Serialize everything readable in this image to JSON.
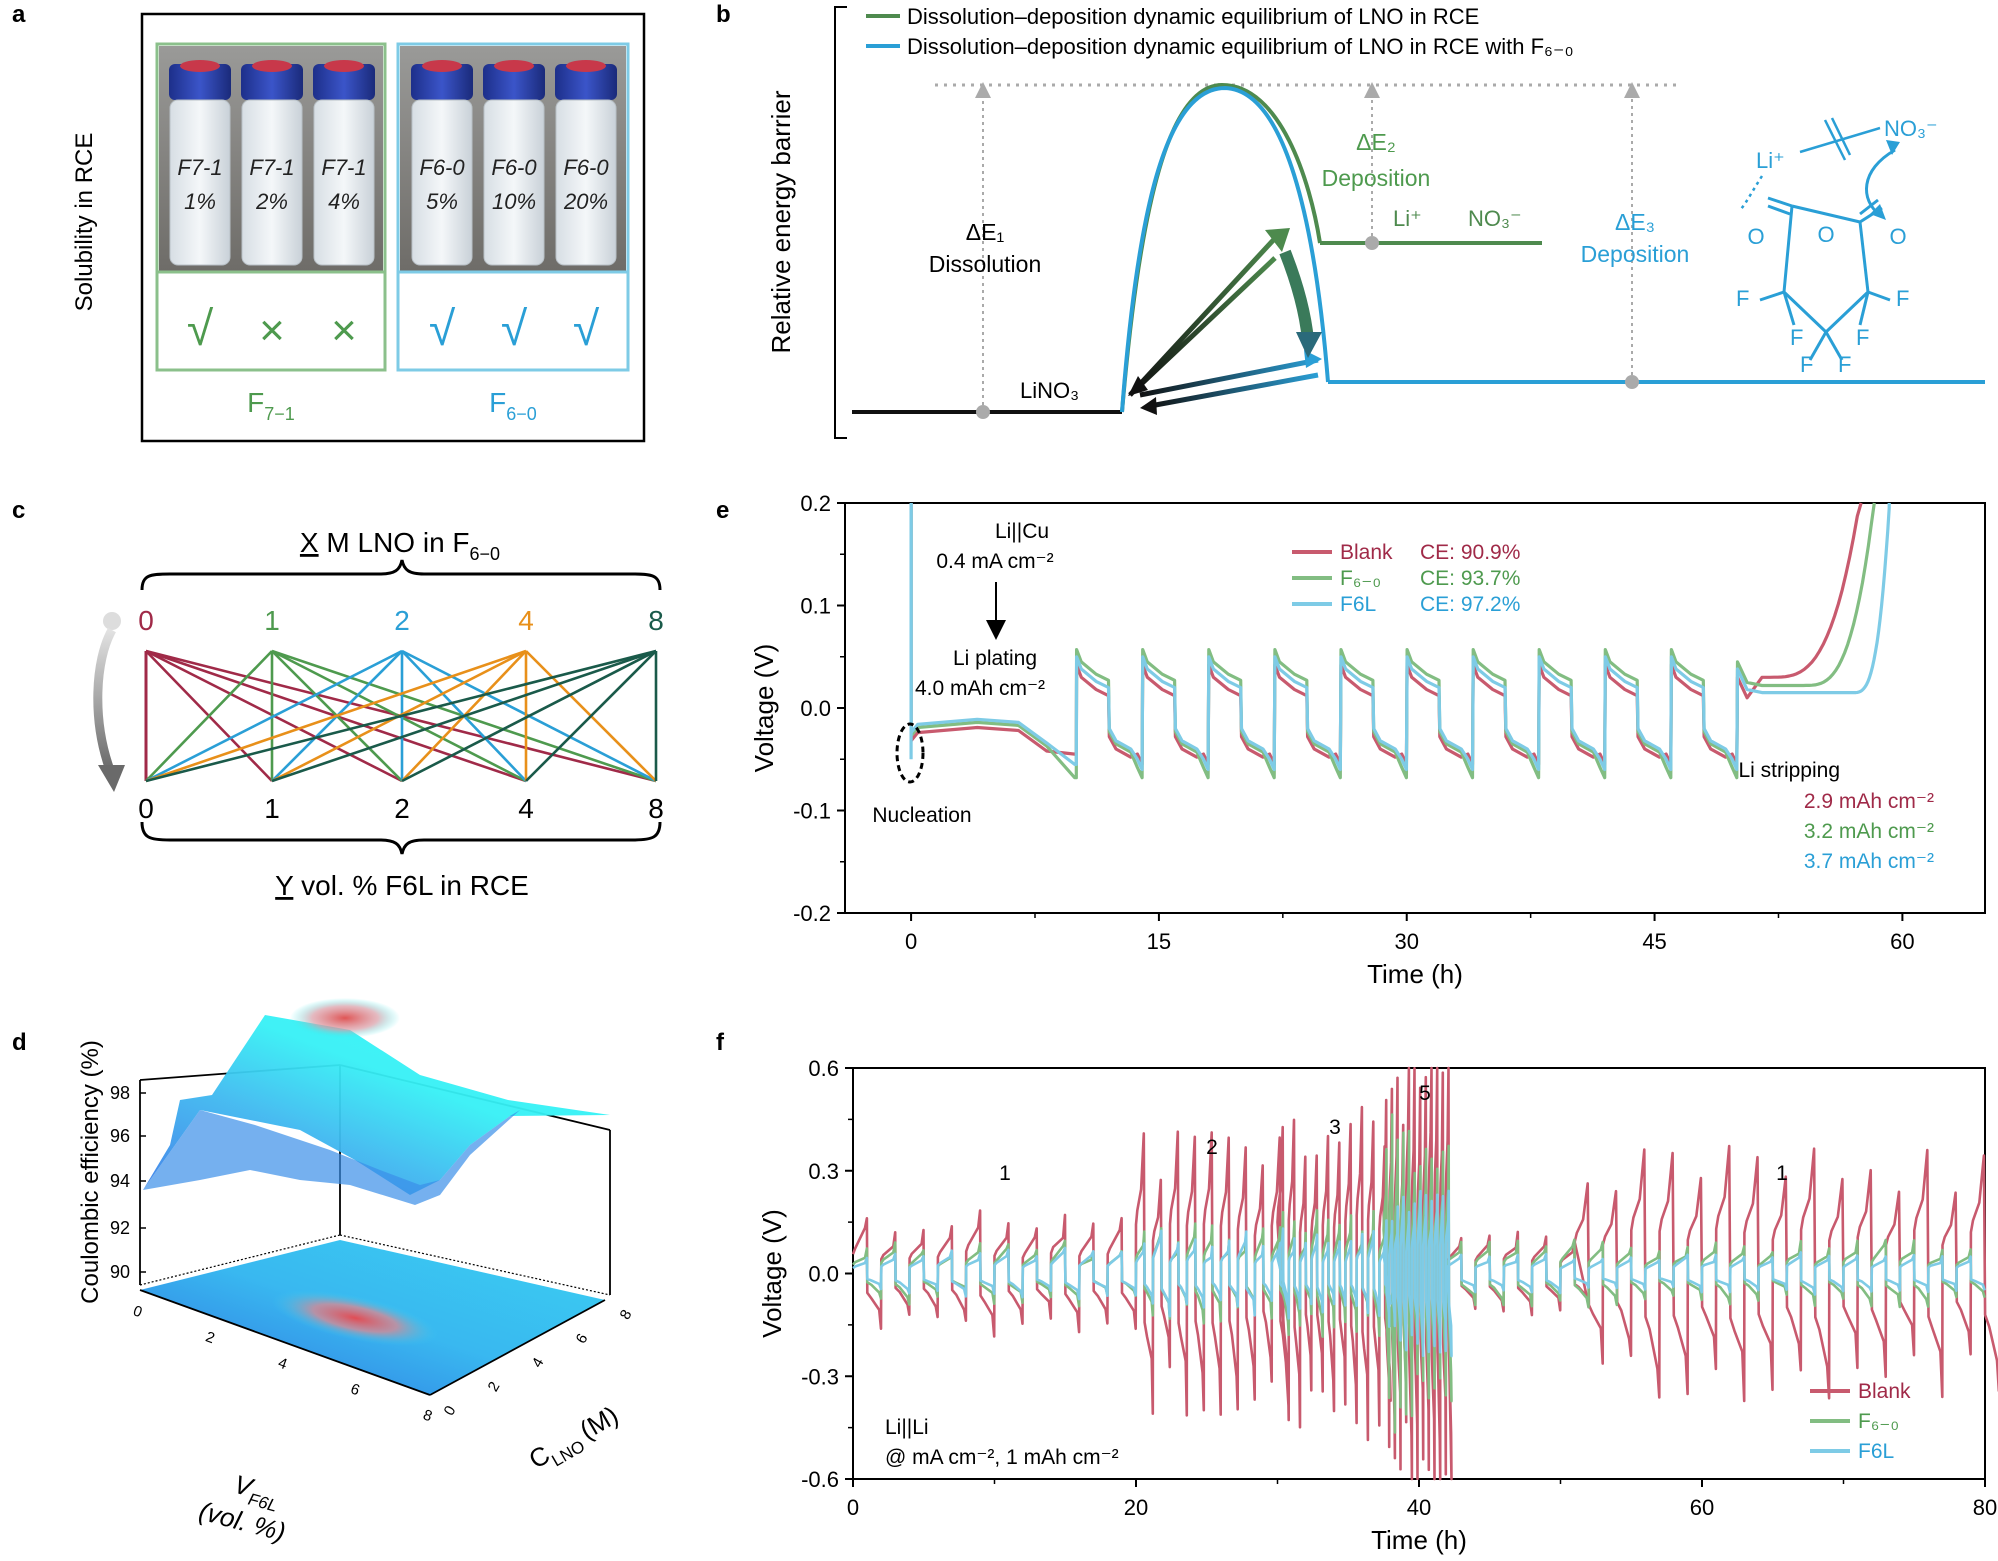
{
  "colors": {
    "blank": "#c85a6e",
    "f60": "#82bd82",
    "f6l": "#7ecbe6",
    "green_label": "#4e9a4e",
    "blue_label": "#2a9fd6",
    "dark_green": "#1a5a4a",
    "orange": "#e8901a",
    "crimson": "#a02a48"
  },
  "panel_a": {
    "letter": "a",
    "ylabel": "Solubility in RCE",
    "left_group": {
      "name": "F",
      "sub": "7−1",
      "vials": [
        "F7-1\n1%",
        "F7-1\n2%",
        "F7-1\n4%"
      ],
      "marks": [
        "√",
        "×",
        "×"
      ]
    },
    "right_group": {
      "name": "F",
      "sub": "6−0",
      "vials": [
        "F6-0\n5%",
        "F6-0\n10%",
        "F6-0\n20%"
      ],
      "marks": [
        "√",
        "√",
        "√"
      ]
    }
  },
  "panel_b": {
    "letter": "b",
    "ylabel": "Relative energy barrier",
    "legend": [
      "Dissolution–deposition dynamic equilibrium of LNO in RCE",
      "Dissolution–deposition dynamic equilibrium of LNO in RCE with F₆₋₀"
    ],
    "dE1": "ΔE₁",
    "dE1_label": "Dissolution",
    "dE2": "ΔE₂",
    "dE2_label": "Deposition",
    "dE3": "ΔE₃",
    "dE3_label": "Deposition",
    "linO3": "LiNO₃",
    "li_plus": "Li⁺",
    "no3_minus": "NO₃⁻",
    "struct_li": "Li⁺",
    "struct_no3": "NO₃⁻",
    "struct_O": "O",
    "struct_F": "F"
  },
  "panel_c": {
    "letter": "c",
    "top_label": "X M LNO in F₆₋₀",
    "top_label_x": "X",
    "top_label_rest": " M LNO in F",
    "top_label_sub": "6−0",
    "bottom_label_y": "Y",
    "bottom_label_rest": " vol. % F6L in RCE",
    "top_values": [
      "0",
      "1",
      "2",
      "4",
      "8"
    ],
    "bottom_values": [
      "0",
      "1",
      "2",
      "4",
      "8"
    ]
  },
  "panel_d": {
    "letter": "d",
    "zlabel": "Coulombic efficiency (%)",
    "z_ticks": [
      "98",
      "96",
      "94",
      "92",
      "90"
    ],
    "x_label": "V",
    "x_label_sub": "F6L",
    "x_label_unit": "(vol. %)",
    "y_label": "C",
    "y_label_sub": "LNO",
    "y_label_unit": "(M)",
    "x_ticks": [
      "0",
      "2",
      "4",
      "6",
      "8"
    ],
    "y_ticks": [
      "0",
      "2",
      "4",
      "6",
      "8"
    ]
  },
  "panel_e": {
    "letter": "e",
    "title_cell": "Li||Cu",
    "title_current": "0.4 mA cm⁻²",
    "plating": "Li plating",
    "plating_cap": "4.0 mAh cm⁻²",
    "nucleation": "Nucleation",
    "stripping": "Li stripping",
    "stripping_values": [
      "2.9 mAh cm⁻²",
      "3.2 mAh cm⁻²",
      "3.7 mAh cm⁻²"
    ],
    "legend": [
      {
        "name": "Blank",
        "ce": "CE: 90.9%"
      },
      {
        "name": "F₆₋₀",
        "ce": "CE: 93.7%"
      },
      {
        "name": "F6L",
        "ce": "CE: 97.2%"
      }
    ]
  },
  "panel_f": {
    "letter": "f",
    "cell": "Li||Li",
    "conditions": "@ mA cm⁻², 1 mAh cm⁻²",
    "stage_labels": [
      "1",
      "2",
      "3",
      "5",
      "1"
    ],
    "legend": [
      "Blank",
      "F₆₋₀",
      "F6L"
    ]
  },
  "chart_data": [
    {
      "type": "line",
      "panel": "e",
      "xlabel": "Time (h)",
      "ylabel": "Voltage (V)",
      "xlim": [
        -4,
        65
      ],
      "ylim": [
        -0.2,
        0.2
      ],
      "x_ticks": [
        0,
        15,
        30,
        45,
        60
      ],
      "y_ticks": [
        0.2,
        0.1,
        0.0,
        -0.1,
        -0.2
      ],
      "x_tick_labels": [
        "0",
        "15",
        "30",
        "45",
        "60"
      ],
      "y_tick_labels": [
        "0.2",
        "0.1",
        "0.0",
        "-0.1",
        "-0.2"
      ],
      "plating_end": 10,
      "cycle_period": 4,
      "cycles": 10,
      "series": [
        {
          "name": "Blank",
          "plateau": -0.02,
          "plating_end_v": -0.045,
          "pulse_high": 0.03,
          "pulse_low": -0.055,
          "rise_start": 52,
          "rise_end": 57.5
        },
        {
          "name": "F₆₋₀",
          "plateau": -0.015,
          "plating_end_v": -0.068,
          "pulse_high": 0.045,
          "pulse_low": -0.068,
          "rise_start": 54,
          "rise_end": 58.3
        },
        {
          "name": "F6L",
          "plateau": -0.012,
          "plating_end_v": -0.055,
          "pulse_high": 0.038,
          "pulse_low": -0.06,
          "rise_start": 57,
          "rise_end": 59.2
        }
      ]
    },
    {
      "type": "line",
      "panel": "f",
      "xlabel": "Time (h)",
      "ylabel": "Voltage (V)",
      "xlim": [
        0,
        80
      ],
      "ylim": [
        -0.6,
        0.6
      ],
      "x_ticks": [
        0,
        20,
        40,
        60,
        80
      ],
      "y_ticks": [
        0.6,
        0.3,
        0.0,
        -0.3,
        -0.6
      ],
      "x_tick_labels": [
        "0",
        "20",
        "40",
        "60",
        "80"
      ],
      "y_tick_labels": [
        "0.6",
        "0.3",
        "0.0",
        "-0.3",
        "-0.6"
      ],
      "series": [
        {
          "name": "Blank",
          "segments": [
            {
              "t0": 0,
              "t1": 20,
              "amp": 0.15,
              "period": 2
            },
            {
              "t0": 20,
              "t1": 30,
              "amp": 0.35,
              "period": 1.2
            },
            {
              "t0": 30,
              "t1": 37.5,
              "amp": 0.4,
              "period": 0.8
            },
            {
              "t0": 37.5,
              "t1": 42,
              "amp": 0.55,
              "period": 0.4
            },
            {
              "t0": 42,
              "t1": 51,
              "amp": 0.1,
              "period": 2
            },
            {
              "t0": 51,
              "t1": 80,
              "amp": 0.3,
              "period": 2
            }
          ]
        },
        {
          "name": "F₆₋₀",
          "segments": [
            {
              "t0": 0,
              "t1": 20,
              "amp": 0.08,
              "period": 2
            },
            {
              "t0": 20,
              "t1": 30,
              "amp": 0.12,
              "period": 1.2
            },
            {
              "t0": 30,
              "t1": 37.5,
              "amp": 0.15,
              "period": 0.8
            },
            {
              "t0": 37.5,
              "t1": 42,
              "amp": 0.38,
              "period": 0.4
            },
            {
              "t0": 42,
              "t1": 80,
              "amp": 0.08,
              "period": 2
            }
          ]
        },
        {
          "name": "F6L",
          "segments": [
            {
              "t0": 0,
              "t1": 20,
              "amp": 0.06,
              "period": 2
            },
            {
              "t0": 20,
              "t1": 30,
              "amp": 0.1,
              "period": 1.2
            },
            {
              "t0": 30,
              "t1": 37.5,
              "amp": 0.11,
              "period": 0.8
            },
            {
              "t0": 37.5,
              "t1": 42,
              "amp": 0.2,
              "period": 0.4
            },
            {
              "t0": 42,
              "t1": 80,
              "amp": 0.05,
              "period": 2
            }
          ]
        }
      ]
    }
  ]
}
